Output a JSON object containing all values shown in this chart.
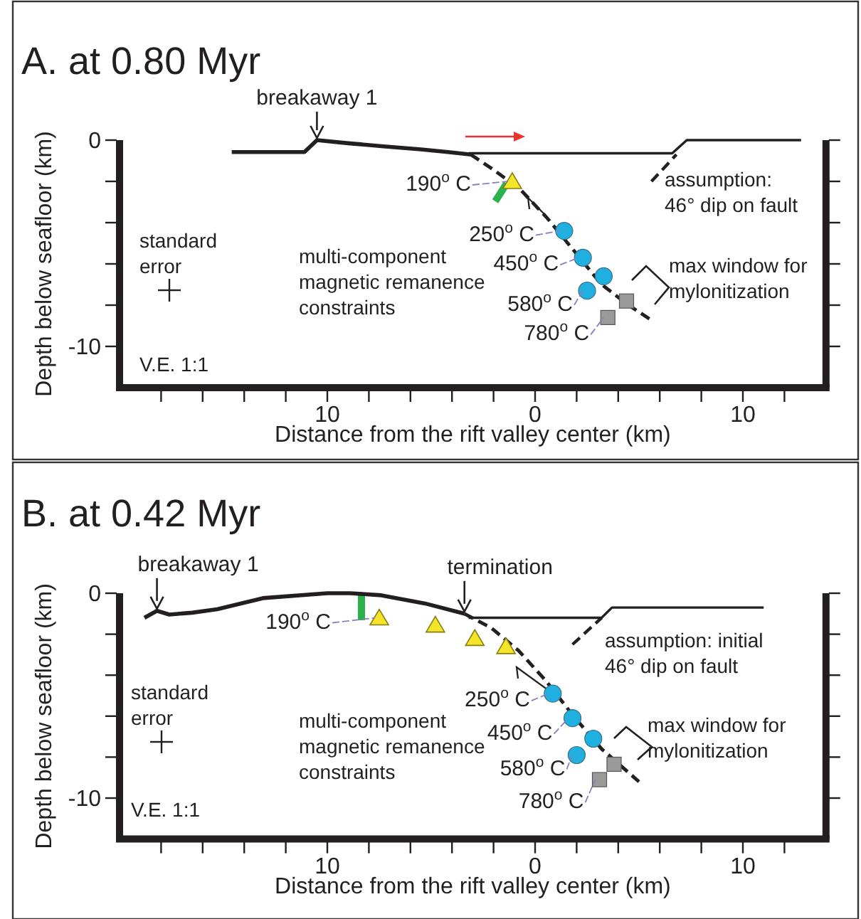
{
  "chart_data": [
    {
      "type": "line",
      "title": "A. at 0.80 Myr",
      "xlabel": "Distance from the rift valley center (km)",
      "ylabel": "Depth below seafloor (km)",
      "xlim": [
        -20,
        14
      ],
      "ylim": [
        -12,
        0
      ],
      "xticks": [
        {
          "value": -18,
          "label": null
        },
        {
          "value": -16,
          "label": null
        },
        {
          "value": -14,
          "label": null
        },
        {
          "value": -12,
          "label": null
        },
        {
          "value": -10,
          "label": "10"
        },
        {
          "value": -8,
          "label": null
        },
        {
          "value": -6,
          "label": null
        },
        {
          "value": -4,
          "label": null
        },
        {
          "value": -2,
          "label": null
        },
        {
          "value": 0,
          "label": "0"
        },
        {
          "value": 2,
          "label": null
        },
        {
          "value": 4,
          "label": null
        },
        {
          "value": 6,
          "label": null
        },
        {
          "value": 8,
          "label": null
        },
        {
          "value": 10,
          "label": "10"
        },
        {
          "value": 12,
          "label": null
        }
      ],
      "yticks": [
        {
          "value": 0,
          "label": "0"
        },
        {
          "value": -2,
          "label": null
        },
        {
          "value": -4,
          "label": null
        },
        {
          "value": -6,
          "label": null
        },
        {
          "value": -8,
          "label": null
        },
        {
          "value": -10,
          "label": "-10"
        }
      ],
      "series": [
        {
          "type": "line",
          "color": "#231f20",
          "line_style": "solid",
          "marker": "none",
          "x": [
            -14.6,
            -11.1,
            -10.5,
            -9,
            -7.3,
            -5.5,
            -4.2,
            -3.1
          ],
          "values": [
            -0.58,
            -0.58,
            0,
            -0.15,
            -0.3,
            -0.45,
            -0.58,
            -0.7
          ]
        },
        {
          "type": "line",
          "color": "#231f20",
          "line_style": "dashed",
          "marker": "none",
          "x": [
            -3.1,
            -2.05,
            -0.7,
            0.6,
            1.9,
            3.2,
            4.5,
            5.7
          ],
          "values": [
            -0.7,
            -1.4,
            -2.4,
            -3.8,
            -5.4,
            -7.0,
            -8.0,
            -8.8
          ]
        },
        {
          "type": "line",
          "color": "#231f20",
          "line_style": "solid",
          "marker": "none",
          "x": [
            -3.2,
            6.6,
            7.3,
            12.8
          ],
          "values": [
            -0.64,
            -0.64,
            0,
            0
          ]
        },
        {
          "type": "line",
          "color": "#231f20",
          "line_style": "dashed",
          "marker": "none",
          "x": [
            5.6,
            6.8
          ],
          "values": [
            -2.0,
            -0.7
          ]
        },
        {
          "type": "scatter",
          "color": "#f2e52a",
          "marker": "triangle",
          "x": [
            -1.1
          ],
          "values": [
            -2.0
          ]
        },
        {
          "type": "scatter",
          "color": "#1fb0e0",
          "marker": "circle",
          "x": [
            1.4,
            2.3,
            3.3,
            2.5
          ],
          "values": [
            -4.4,
            -5.7,
            -6.6,
            -7.3
          ]
        },
        {
          "type": "scatter",
          "color": "#9a9a9a",
          "marker": "square",
          "x": [
            4.4,
            3.5
          ],
          "values": [
            -7.8,
            -8.6
          ]
        }
      ],
      "annotations": [
        {
          "text": "breakaway 1",
          "x": -10.5,
          "y": 0
        },
        {
          "text": "190$^{o}$ C",
          "x": -1.1,
          "y": -2.0
        },
        {
          "text": "250$^{o}$ C",
          "x": 1.4,
          "y": -4.4
        },
        {
          "text": "450$^{o}$ C",
          "x": 2.3,
          "y": -5.7
        },
        {
          "text": "580$^{o}$ C",
          "x": 2.5,
          "y": -7.3
        },
        {
          "text": "780$^{o}$ C",
          "x": 3.5,
          "y": -8.6
        },
        "standard error",
        "multi-component magnetic remanence constraints",
        "assumption: 46° dip on fault",
        "max window for mylonitization",
        "V.E. 1:1"
      ]
    },
    {
      "type": "line",
      "title": "B. at 0.42 Myr",
      "xlabel": "Distance from the rift valley center (km)",
      "ylabel": "Depth below seafloor (km)",
      "xlim": [
        -20,
        14
      ],
      "ylim": [
        -12,
        0
      ],
      "xticks": [
        {
          "value": -18,
          "label": null
        },
        {
          "value": -16,
          "label": null
        },
        {
          "value": -14,
          "label": null
        },
        {
          "value": -12,
          "label": null
        },
        {
          "value": -10,
          "label": "10"
        },
        {
          "value": -8,
          "label": null
        },
        {
          "value": -6,
          "label": null
        },
        {
          "value": -4,
          "label": null
        },
        {
          "value": -2,
          "label": null
        },
        {
          "value": 0,
          "label": "0"
        },
        {
          "value": 2,
          "label": null
        },
        {
          "value": 4,
          "label": null
        },
        {
          "value": 6,
          "label": null
        },
        {
          "value": 8,
          "label": null
        },
        {
          "value": 10,
          "label": "10"
        },
        {
          "value": 12,
          "label": null
        }
      ],
      "yticks": [
        {
          "value": 0,
          "label": "0"
        },
        {
          "value": -2,
          "label": null
        },
        {
          "value": -4,
          "label": null
        },
        {
          "value": -6,
          "label": null
        },
        {
          "value": -8,
          "label": null
        },
        {
          "value": -10,
          "label": "-10"
        }
      ],
      "series": [
        {
          "type": "line",
          "color": "#231f20",
          "line_style": "solid",
          "marker": "none",
          "x": [
            -18.8,
            -18.2,
            -17.6,
            -16.5,
            -15.3,
            -13.1,
            -10,
            -8.9,
            -7.4,
            -5.3,
            -3.4
          ],
          "values": [
            -1.2,
            -0.86,
            -1.04,
            -0.95,
            -0.78,
            -0.24,
            0,
            0,
            -0.1,
            -0.5,
            -1.0
          ]
        },
        {
          "type": "line",
          "color": "#231f20",
          "line_style": "dashed",
          "marker": "none",
          "x": [
            -3.4,
            -2.1,
            -0.8,
            0.5,
            1.85,
            3.2,
            5.0
          ],
          "values": [
            -1.0,
            -1.7,
            -2.8,
            -4.25,
            -6.0,
            -7.6,
            -9.2
          ]
        },
        {
          "type": "line",
          "color": "#231f20",
          "line_style": "solid",
          "marker": "none",
          "x": [
            -3.2,
            3.2,
            3.7,
            11
          ],
          "values": [
            -1.2,
            -1.2,
            -0.7,
            -0.7
          ]
        },
        {
          "type": "line",
          "color": "#231f20",
          "line_style": "dashed",
          "marker": "none",
          "x": [
            1.8,
            3.2
          ],
          "values": [
            -2.5,
            -1.2
          ]
        },
        {
          "type": "scatter",
          "color": "#f2e52a",
          "marker": "triangle",
          "x": [
            -7.5,
            -4.8,
            -2.9,
            -1.4
          ],
          "values": [
            -1.2,
            -1.55,
            -2.2,
            -2.6
          ]
        },
        {
          "type": "scatter",
          "color": "#1fb0e0",
          "marker": "circle",
          "x": [
            0.85,
            1.8,
            2.8,
            2.0
          ],
          "values": [
            -4.9,
            -6.1,
            -7.1,
            -7.9
          ]
        },
        {
          "type": "scatter",
          "color": "#9a9a9a",
          "marker": "square",
          "x": [
            3.8,
            3.1
          ],
          "values": [
            -8.35,
            -9.1
          ]
        }
      ],
      "annotations": [
        {
          "text": "breakaway 1",
          "x": -18.2,
          "y": -0.86
        },
        {
          "text": "termination",
          "x": -3.4,
          "y": -1.0
        },
        {
          "text": "190$^{o}$ C",
          "x": -7.5,
          "y": -1.2
        },
        {
          "text": "250$^{o}$ C",
          "x": 0.85,
          "y": -4.9
        },
        {
          "text": "450$^{o}$ C",
          "x": 1.8,
          "y": -6.1
        },
        {
          "text": "580$^{o}$ C",
          "x": 2.0,
          "y": -7.9
        },
        {
          "text": "780$^{o}$ C",
          "x": 3.1,
          "y": -9.1
        },
        "standard error",
        "multi-component magnetic remanence constraints",
        "assumption: initial 46° dip on fault",
        "max window for mylonitization",
        "V.E. 1:1"
      ]
    }
  ]
}
